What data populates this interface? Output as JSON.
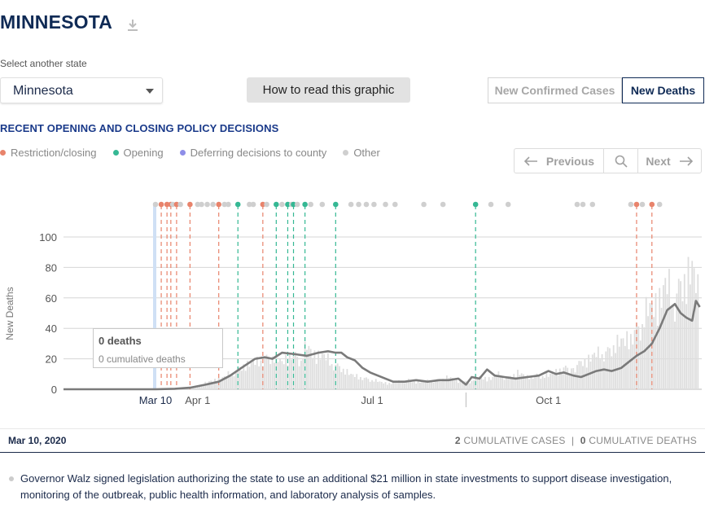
{
  "header": {
    "title": "MINNESOTA",
    "download_icon": "download-icon"
  },
  "state_selector": {
    "label": "Select another state",
    "value": "Minnesota"
  },
  "how_button": {
    "label": "How to read this graphic"
  },
  "metric_toggle": {
    "options": [
      "New Confirmed Cases",
      "New Deaths"
    ],
    "active": "New Deaths"
  },
  "policy": {
    "heading": "RECENT OPENING AND CLOSING POLICY DECISIONS",
    "legend": [
      {
        "label": "Restriction/closing",
        "color": "#e8836b"
      },
      {
        "label": "Opening",
        "color": "#35b894"
      },
      {
        "label": "Deferring decisions to county",
        "color": "#8e8ee8"
      },
      {
        "label": "Other",
        "color": "#cfcfcf"
      }
    ]
  },
  "nav": {
    "previous": "Previous",
    "next": "Next",
    "search_icon": "search-icon"
  },
  "tooltip": {
    "title": "0 deaths",
    "subtitle": "0 cumulative deaths"
  },
  "selection": {
    "date": "Mar 10, 2020",
    "cases_value": "2",
    "cases_label": "CUMULATIVE CASES",
    "separator": "|",
    "deaths_value": "0",
    "deaths_label": "CUMULATIVE DEATHS"
  },
  "note": {
    "text": "Governor Walz signed legislation authorizing the state to use an additional $21 million in state investments to support disease investigation, monitoring of the outbreak, public health information, and laboratory analysis of samples."
  },
  "chart_data": {
    "type": "bar",
    "ylabel": "New Deaths",
    "ylim": [
      0,
      100
    ],
    "yticks": [
      0,
      20,
      40,
      60,
      80,
      100
    ],
    "x_start": "2020-01-22",
    "x_end": "2020-12-20",
    "xticks": [
      {
        "date": "2020-03-10",
        "label": "Mar 10",
        "highlight": true
      },
      {
        "date": "2020-04-01",
        "label": "Apr 1"
      },
      {
        "date": "2020-07-01",
        "label": "Jul 1"
      },
      {
        "date": "2020-10-01",
        "label": "Oct 1"
      }
    ],
    "selected_date": "2020-03-10",
    "series": [
      {
        "name": "New Deaths",
        "kind": "daily_bars",
        "points": [
          [
            "2020-03-10",
            0
          ],
          [
            "2020-03-20",
            0
          ],
          [
            "2020-03-25",
            1
          ],
          [
            "2020-03-28",
            2
          ],
          [
            "2020-04-01",
            3
          ],
          [
            "2020-04-05",
            5
          ],
          [
            "2020-04-10",
            8
          ],
          [
            "2020-04-15",
            10
          ],
          [
            "2020-04-20",
            15
          ],
          [
            "2020-04-25",
            20
          ],
          [
            "2020-05-01",
            22
          ],
          [
            "2020-05-05",
            25
          ],
          [
            "2020-05-10",
            28
          ],
          [
            "2020-05-15",
            22
          ],
          [
            "2020-05-20",
            30
          ],
          [
            "2020-05-25",
            26
          ],
          [
            "2020-05-28",
            34
          ],
          [
            "2020-06-01",
            30
          ],
          [
            "2020-06-05",
            28
          ],
          [
            "2020-06-10",
            22
          ],
          [
            "2020-06-15",
            18
          ],
          [
            "2020-06-20",
            12
          ],
          [
            "2020-06-25",
            10
          ],
          [
            "2020-07-01",
            8
          ],
          [
            "2020-07-05",
            6
          ],
          [
            "2020-07-10",
            5
          ],
          [
            "2020-07-15",
            6
          ],
          [
            "2020-07-20",
            8
          ],
          [
            "2020-07-25",
            6
          ],
          [
            "2020-08-01",
            7
          ],
          [
            "2020-08-05",
            8
          ],
          [
            "2020-08-10",
            10
          ],
          [
            "2020-08-15",
            7
          ],
          [
            "2020-08-20",
            6
          ],
          [
            "2020-08-25",
            10
          ],
          [
            "2020-09-01",
            9
          ],
          [
            "2020-09-05",
            12
          ],
          [
            "2020-09-10",
            10
          ],
          [
            "2020-09-15",
            14
          ],
          [
            "2020-09-20",
            10
          ],
          [
            "2020-09-25",
            12
          ],
          [
            "2020-10-01",
            11
          ],
          [
            "2020-10-05",
            15
          ],
          [
            "2020-10-10",
            18
          ],
          [
            "2020-10-15",
            20
          ],
          [
            "2020-10-20",
            24
          ],
          [
            "2020-10-25",
            28
          ],
          [
            "2020-11-01",
            32
          ],
          [
            "2020-11-05",
            38
          ],
          [
            "2020-11-10",
            40
          ],
          [
            "2020-11-15",
            48
          ],
          [
            "2020-11-20",
            60
          ],
          [
            "2020-11-25",
            70
          ],
          [
            "2020-12-01",
            85
          ],
          [
            "2020-12-05",
            75
          ],
          [
            "2020-12-10",
            90
          ],
          [
            "2020-12-15",
            100
          ],
          [
            "2020-12-18",
            80
          ]
        ]
      },
      {
        "name": "7-day average",
        "kind": "line",
        "color": "#7a7a7a",
        "points": [
          [
            "2020-01-22",
            0
          ],
          [
            "2020-03-10",
            0
          ],
          [
            "2020-03-20",
            0.3
          ],
          [
            "2020-03-28",
            1
          ],
          [
            "2020-04-05",
            3
          ],
          [
            "2020-04-12",
            5
          ],
          [
            "2020-04-18",
            9
          ],
          [
            "2020-04-25",
            15
          ],
          [
            "2020-05-01",
            20
          ],
          [
            "2020-05-06",
            21
          ],
          [
            "2020-05-10",
            20
          ],
          [
            "2020-05-15",
            24
          ],
          [
            "2020-05-22",
            23
          ],
          [
            "2020-05-28",
            22
          ],
          [
            "2020-06-03",
            24
          ],
          [
            "2020-06-08",
            25
          ],
          [
            "2020-06-12",
            24
          ],
          [
            "2020-06-15",
            24
          ],
          [
            "2020-06-18",
            21
          ],
          [
            "2020-06-22",
            19
          ],
          [
            "2020-06-26",
            14
          ],
          [
            "2020-06-30",
            11
          ],
          [
            "2020-07-04",
            9
          ],
          [
            "2020-07-08",
            7
          ],
          [
            "2020-07-12",
            5
          ],
          [
            "2020-07-18",
            5
          ],
          [
            "2020-07-24",
            6
          ],
          [
            "2020-07-30",
            5
          ],
          [
            "2020-08-05",
            6
          ],
          [
            "2020-08-10",
            6
          ],
          [
            "2020-08-15",
            7
          ],
          [
            "2020-08-19",
            3
          ],
          [
            "2020-08-22",
            8
          ],
          [
            "2020-08-26",
            7
          ],
          [
            "2020-08-30",
            13
          ],
          [
            "2020-09-03",
            9
          ],
          [
            "2020-09-08",
            8
          ],
          [
            "2020-09-14",
            7
          ],
          [
            "2020-09-20",
            8
          ],
          [
            "2020-09-26",
            9
          ],
          [
            "2020-10-01",
            12
          ],
          [
            "2020-10-05",
            10
          ],
          [
            "2020-10-09",
            11
          ],
          [
            "2020-10-14",
            9
          ],
          [
            "2020-10-18",
            8
          ],
          [
            "2020-10-22",
            10
          ],
          [
            "2020-10-26",
            12
          ],
          [
            "2020-10-30",
            13
          ],
          [
            "2020-11-03",
            12
          ],
          [
            "2020-11-08",
            14
          ],
          [
            "2020-11-12",
            18
          ],
          [
            "2020-11-16",
            22
          ],
          [
            "2020-11-20",
            25
          ],
          [
            "2020-11-24",
            30
          ],
          [
            "2020-11-28",
            40
          ],
          [
            "2020-12-02",
            52
          ],
          [
            "2020-12-06",
            56
          ],
          [
            "2020-12-09",
            50
          ],
          [
            "2020-12-12",
            47
          ],
          [
            "2020-12-15",
            45
          ],
          [
            "2020-12-17",
            58
          ],
          [
            "2020-12-19",
            54
          ]
        ]
      }
    ],
    "policy_events": [
      {
        "date": "2020-03-10",
        "type": "Other"
      },
      {
        "date": "2020-03-13",
        "type": "Restriction/closing"
      },
      {
        "date": "2020-03-16",
        "type": "Restriction/closing"
      },
      {
        "date": "2020-03-18",
        "type": "Restriction/closing"
      },
      {
        "date": "2020-03-19",
        "type": "Other"
      },
      {
        "date": "2020-03-21",
        "type": "Restriction/closing"
      },
      {
        "date": "2020-03-23",
        "type": "Other"
      },
      {
        "date": "2020-03-28",
        "type": "Restriction/closing"
      },
      {
        "date": "2020-04-01",
        "type": "Other"
      },
      {
        "date": "2020-04-03",
        "type": "Other"
      },
      {
        "date": "2020-04-06",
        "type": "Other"
      },
      {
        "date": "2020-04-09",
        "type": "Other"
      },
      {
        "date": "2020-04-12",
        "type": "Restriction/closing"
      },
      {
        "date": "2020-04-15",
        "type": "Other"
      },
      {
        "date": "2020-04-17",
        "type": "Other"
      },
      {
        "date": "2020-04-22",
        "type": "Opening"
      },
      {
        "date": "2020-04-28",
        "type": "Other"
      },
      {
        "date": "2020-04-30",
        "type": "Other"
      },
      {
        "date": "2020-05-05",
        "type": "Restriction/closing"
      },
      {
        "date": "2020-05-07",
        "type": "Other"
      },
      {
        "date": "2020-05-12",
        "type": "Opening"
      },
      {
        "date": "2020-05-15",
        "type": "Other"
      },
      {
        "date": "2020-05-18",
        "type": "Opening"
      },
      {
        "date": "2020-05-20",
        "type": "Other"
      },
      {
        "date": "2020-05-21",
        "type": "Opening"
      },
      {
        "date": "2020-05-23",
        "type": "Other"
      },
      {
        "date": "2020-05-27",
        "type": "Opening"
      },
      {
        "date": "2020-05-30",
        "type": "Other"
      },
      {
        "date": "2020-06-05",
        "type": "Other"
      },
      {
        "date": "2020-06-12",
        "type": "Opening"
      },
      {
        "date": "2020-06-20",
        "type": "Other"
      },
      {
        "date": "2020-06-24",
        "type": "Other"
      },
      {
        "date": "2020-06-28",
        "type": "Other"
      },
      {
        "date": "2020-07-02",
        "type": "Other"
      },
      {
        "date": "2020-07-08",
        "type": "Other"
      },
      {
        "date": "2020-07-13",
        "type": "Other"
      },
      {
        "date": "2020-07-28",
        "type": "Other"
      },
      {
        "date": "2020-08-07",
        "type": "Other"
      },
      {
        "date": "2020-08-24",
        "type": "Opening"
      },
      {
        "date": "2020-09-01",
        "type": "Other"
      },
      {
        "date": "2020-09-10",
        "type": "Other"
      },
      {
        "date": "2020-10-16",
        "type": "Other"
      },
      {
        "date": "2020-10-19",
        "type": "Other"
      },
      {
        "date": "2020-10-24",
        "type": "Other"
      },
      {
        "date": "2020-11-13",
        "type": "Other"
      },
      {
        "date": "2020-11-16",
        "type": "Restriction/closing"
      },
      {
        "date": "2020-11-19",
        "type": "Other"
      },
      {
        "date": "2020-11-24",
        "type": "Restriction/closing"
      },
      {
        "date": "2020-11-28",
        "type": "Other"
      }
    ]
  }
}
